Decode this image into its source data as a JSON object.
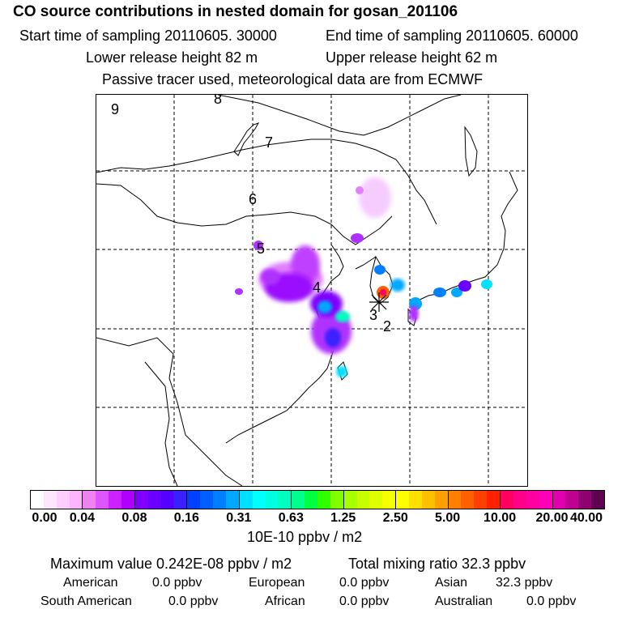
{
  "header": {
    "title": "CO  source contributions in nested domain for gosan_201106",
    "start_label": "Start time of sampling 20110605. 30000",
    "end_label": "End time of sampling 20110605. 60000",
    "lower_label": "Lower release height   82 m",
    "upper_label": "Upper release height   62 m",
    "tracer_label": "Passive tracer used, meteorological data are from ECMWF"
  },
  "map": {
    "trajectory_labels": [
      "9",
      "8",
      "7",
      "6",
      "5",
      "4",
      "3",
      "2"
    ],
    "marker": "receptor-star"
  },
  "colorbar": {
    "ticks": [
      "0.00",
      "0.04",
      "0.08",
      "0.16",
      "0.31",
      "0.63",
      "1.25",
      "2.50",
      "5.00",
      "10.00",
      "20.00",
      "40.00"
    ],
    "unit": "10E-10 ppbv / m2",
    "colors": [
      [
        "#ffffff",
        "#ffe6ff",
        "#ffcdff",
        "#ffb4ff"
      ],
      [
        "#ee82ee",
        "#dd55ff",
        "#cc22ff",
        "#b000ff"
      ],
      [
        "#8000ff",
        "#6a00ff",
        "#5500ff",
        "#3a20ff"
      ],
      [
        "#0040ff",
        "#0060ff",
        "#0080ff",
        "#00a8ff"
      ],
      [
        "#00e0ff",
        "#00ffff",
        "#00ffe0",
        "#00ffbf"
      ],
      [
        "#00ff8c",
        "#00ff40",
        "#30ff00",
        "#80ff00"
      ],
      [
        "#a8ff00",
        "#c8ff00",
        "#e0ff00",
        "#f5ff00"
      ],
      [
        "#ffff00",
        "#ffe000",
        "#ffc000",
        "#ffa000"
      ],
      [
        "#ff8000",
        "#ff6000",
        "#ff4000",
        "#ff2000"
      ],
      [
        "#ff0060",
        "#ff0088",
        "#ff00a0",
        "#ff00b8"
      ],
      [
        "#e000b0",
        "#c00090",
        "#900070",
        "#600050"
      ]
    ]
  },
  "summary": {
    "max_label": "Maximum value  0.242E-08 ppbv / m2",
    "total_label": "Total mixing ratio       32.3 ppbv",
    "rows": [
      {
        "name": "American",
        "value": "0.0 ppbv"
      },
      {
        "name": "European",
        "value": "0.0 ppbv"
      },
      {
        "name": "Asian",
        "value": "32.3 ppbv"
      },
      {
        "name": "South American",
        "value": "0.0 ppbv"
      },
      {
        "name": "African",
        "value": "0.0 ppbv"
      },
      {
        "name": "Australian",
        "value": "0.0 ppbv"
      }
    ]
  }
}
